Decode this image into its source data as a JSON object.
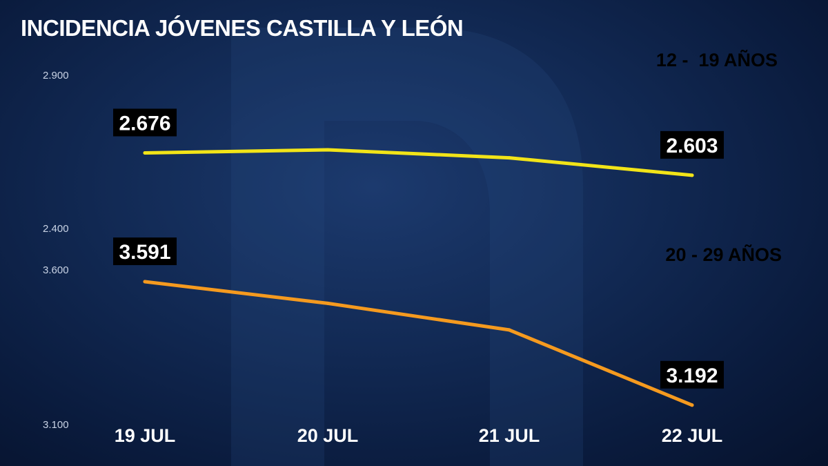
{
  "chart_data": {
    "title": "INCIDENCIA JÓVENES CASTILLA Y LEÓN",
    "categories": [
      "19 JUL",
      "20 JUL",
      "21 JUL",
      "22 JUL"
    ],
    "panels": [
      {
        "type": "line",
        "series": [
          {
            "name": "12 -  19 AÑOS",
            "color": "#f2e418",
            "values": [
              2676,
              2686,
              2660,
              2603
            ],
            "data_labels": [
              "2.676",
              null,
              null,
              "2.603"
            ]
          }
        ],
        "ylim": [
          2400,
          2900
        ],
        "y_ticks": [
          {
            "value": 2900,
            "label": "2.900"
          },
          {
            "value": 2400,
            "label": "2.400"
          }
        ]
      },
      {
        "type": "line",
        "series": [
          {
            "name": "20 - 29 AÑOS",
            "color": "#f59a1f",
            "values": [
              3591,
              3521,
              3435,
              3192
            ],
            "data_labels": [
              "3.591",
              null,
              null,
              "3.192"
            ]
          }
        ],
        "ylim": [
          3100,
          3600
        ],
        "y_ticks": [
          {
            "value": 3600,
            "label": "3.600"
          },
          {
            "value": 3100,
            "label": "3.100"
          }
        ]
      }
    ],
    "grid": true,
    "legend_placement": "top-right"
  }
}
